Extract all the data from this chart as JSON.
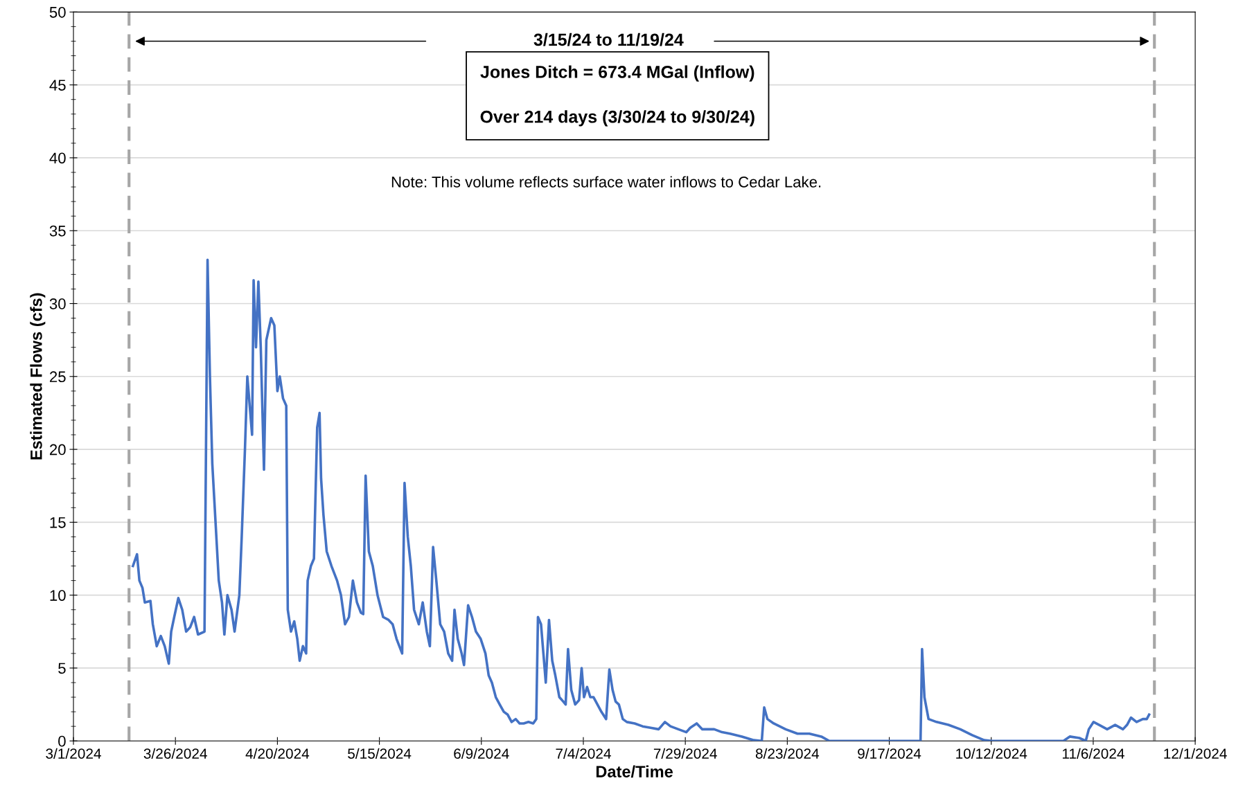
{
  "chart_data": {
    "type": "line",
    "xlabel": "Date/Time",
    "ylabel": "Estimated Flows (cfs)",
    "annotations": [
      "3/15/24 to 11/19/24",
      "Jones Ditch = 673.4 MGal (Inflow)\n\nOver 214 days (3/30/24 to 9/30/24)",
      "Note: This volume reflects surface water inflows to Cedar Lake."
    ],
    "series": [
      {
        "color": "#4472c4",
        "x": [
          "2024-03-15T14:00",
          "2024-03-16T14:00",
          "2024-03-17T04:00",
          "2024-03-17T22:00",
          "2024-03-18T12:00",
          "2024-03-19T21:00",
          "2024-03-20T11:00",
          "2024-03-21T10:00",
          "2024-03-22T10:00",
          "2024-03-23T09:00",
          "2024-03-24T09:00",
          "2024-03-24T23:00",
          "2024-03-25T17:00",
          "2024-03-26T17:00",
          "2024-03-27T16:00",
          "2024-03-28T15:00",
          "2024-03-29T15:00",
          "2024-03-30T14:00",
          "2024-03-31T13:00",
          "2024-04-02T03:00",
          "2024-04-02T21:00",
          "2024-04-03T11:00",
          "2024-04-04T01:00",
          "2024-04-04T20:00",
          "2024-04-05T15:00",
          "2024-04-06T10:00",
          "2024-04-07T00:00",
          "2024-04-07T18:00",
          "2024-04-08T18:00",
          "2024-04-09T12:00",
          "2024-04-10T16:00",
          "2024-04-11T06:00",
          "2024-04-12T01:00",
          "2024-04-12T15:00",
          "2024-04-13T05:00",
          "2024-04-13T19:00",
          "2024-04-14T04:00",
          "2024-04-14T18:00",
          "2024-04-15T08:00",
          "2024-04-15T22:00",
          "2024-04-16T17:00",
          "2024-04-17T07:00",
          "2024-04-18T11:00",
          "2024-04-19T06:00",
          "2024-04-20T00:00",
          "2024-04-20T14:00",
          "2024-04-21T09:00",
          "2024-04-22T04:00",
          "2024-04-22T13:00",
          "2024-04-23T08:00",
          "2024-04-24T03:00",
          "2024-04-24T21:00",
          "2024-04-25T11:00",
          "2024-04-26T06:00",
          "2024-04-27T01:00",
          "2024-04-27T10:00",
          "2024-04-28T05:00",
          "2024-04-28T23:00",
          "2024-04-29T18:00",
          "2024-04-30T08:00",
          "2024-04-30T17:00",
          "2024-05-01T07:00",
          "2024-05-02T02:00",
          "2024-05-03T06:00",
          "2024-05-04T15:00",
          "2024-05-05T14:00",
          "2024-05-06T14:00",
          "2024-05-07T13:00",
          "2024-05-08T12:00",
          "2024-05-09T12:00",
          "2024-05-10T11:00",
          "2024-05-11T01:00",
          "2024-05-11T15:00",
          "2024-05-12T10:00",
          "2024-05-13T09:00",
          "2024-05-14T13:00",
          "2024-05-15T22:00",
          "2024-05-17T06:00",
          "2024-05-18T06:00",
          "2024-05-19T05:00",
          "2024-05-20T14:00",
          "2024-05-21T04:00",
          "2024-05-21T23:00",
          "2024-05-22T17:00",
          "2024-05-23T12:00",
          "2024-05-24T16:00",
          "2024-05-25T15:00",
          "2024-05-26T15:00",
          "2024-05-27T09:00",
          "2024-05-28T04:00",
          "2024-05-28T23:00",
          "2024-05-29T22:00",
          "2024-05-30T21:00",
          "2024-05-31T21:00",
          "2024-06-01T20:00",
          "2024-06-02T10:00",
          "2024-06-03T05:00",
          "2024-06-04T04:00",
          "2024-06-04T18:00",
          "2024-06-05T18:00",
          "2024-06-06T17:00",
          "2024-06-07T16:00",
          "2024-06-08T20:00",
          "2024-06-10T00:00",
          "2024-06-10T19:00",
          "2024-06-11T14:00",
          "2024-06-12T13:00",
          "2024-06-13T12:00",
          "2024-06-14T12:00",
          "2024-06-15T11:00",
          "2024-06-16T10:00",
          "2024-06-17T10:00",
          "2024-06-18T09:00",
          "2024-06-19T09:00",
          "2024-06-20T13:00",
          "2024-06-21T17:00",
          "2024-06-22T11:00",
          "2024-06-22T21:00",
          "2024-06-23T15:00",
          "2024-06-24T05:00",
          "2024-06-24T19:00",
          "2024-06-25T14:00",
          "2024-06-26T09:00",
          "2024-06-27T03:00",
          "2024-06-28T03:00",
          "2024-06-29T02:00",
          "2024-06-29T16:00",
          "2024-06-30T06:00",
          "2024-07-01T01:00",
          "2024-07-02T00:00",
          "2024-07-02T23:00",
          "2024-07-03T14:00",
          "2024-07-04T04:00",
          "2024-07-04T22:00",
          "2024-07-05T17:00",
          "2024-07-06T12:00",
          "2024-07-07T11:00",
          "2024-07-08T10:00",
          "2024-07-09T14:00",
          "2024-07-10T09:00",
          "2024-07-11T04:00",
          "2024-07-11T22:00",
          "2024-07-12T17:00",
          "2024-07-13T16:00",
          "2024-07-14T16:00",
          "2024-07-16T14:00",
          "2024-07-18T13:00",
          "2024-07-20T12:00",
          "2024-07-22T11:00",
          "2024-07-24T00:00",
          "2024-07-25T09:00",
          "2024-07-27T07:00",
          "2024-07-29T06:00",
          "2024-07-30T05:00",
          "2024-07-31T19:00",
          "2024-08-02T04:00",
          "2024-08-05T02:00",
          "2024-08-07T00:00",
          "2024-08-08T23:00",
          "2024-08-11T21:00",
          "2024-08-14T19:00",
          "2024-08-16T18:00",
          "2024-08-17T08:00",
          "2024-08-18T03:00",
          "2024-08-19T16:00",
          "2024-08-22T14:00",
          "2024-08-25T12:00",
          "2024-08-28T10:00",
          "2024-08-31T08:00",
          "2024-09-02T07:00",
          "2024-09-13T00:00",
          "2024-09-24T16:00",
          "2024-09-25T01:00",
          "2024-09-25T15:00",
          "2024-09-26T15:00",
          "2024-09-28T14:00",
          "2024-10-01T12:00",
          "2024-10-04T10:00",
          "2024-10-07T08:00",
          "2024-10-10T06:00",
          "2024-10-12T04:00",
          "2024-10-29T17:00",
          "2024-10-31T06:00",
          "2024-11-02T14:00",
          "2024-11-04T04:00",
          "2024-11-04T22:00",
          "2024-11-06T02:00",
          "2024-11-07T11:00",
          "2024-11-09T10:00",
          "2024-11-11T09:00",
          "2024-11-13T07:00",
          "2024-11-14T07:00",
          "2024-11-15T06:00",
          "2024-11-16T15:00",
          "2024-11-18T04:00",
          "2024-11-19T03:00",
          "2024-11-19T17:00"
        ],
        "values": [
          12,
          12.8,
          11,
          10.5,
          9.5,
          9.6,
          8,
          6.5,
          7.2,
          6.5,
          5.3,
          7.5,
          8.5,
          9.8,
          9,
          7.5,
          7.8,
          8.5,
          7.3,
          7.5,
          33,
          25,
          19,
          15,
          11,
          9.5,
          7.3,
          10,
          9,
          7.5,
          10,
          14,
          20,
          25,
          23,
          21,
          31.6,
          27,
          31.5,
          27,
          18.6,
          27.5,
          29,
          28.5,
          24,
          25,
          23.5,
          23,
          9,
          7.5,
          8.2,
          7,
          5.5,
          6.5,
          6,
          11,
          12,
          12.5,
          21.5,
          22.5,
          18,
          15.5,
          13,
          12,
          11,
          10,
          8,
          8.5,
          11,
          9.5,
          8.8,
          8.7,
          18.2,
          13,
          12,
          10,
          8.5,
          8.3,
          8,
          7,
          6,
          17.7,
          14,
          12,
          9,
          8,
          9.5,
          7.5,
          6.5,
          13.3,
          11,
          8,
          7.5,
          6,
          5.5,
          9,
          7,
          6,
          5.2,
          9.3,
          8.5,
          7.5,
          7,
          6,
          4.5,
          4,
          3,
          2.5,
          2,
          1.8,
          1.3,
          1.5,
          1.2,
          1.2,
          1.3,
          1.2,
          1.5,
          8.5,
          8,
          6,
          4,
          8.3,
          5.5,
          4.5,
          3,
          2.7,
          2.5,
          6.3,
          3.5,
          2.5,
          2.8,
          5,
          3,
          3.7,
          3,
          3,
          2.5,
          2,
          1.5,
          4.9,
          3.5,
          2.7,
          2.5,
          1.5,
          1.3,
          1.2,
          1,
          0.9,
          0.8,
          1.3,
          1,
          0.8,
          0.6,
          0.9,
          1.2,
          0.8,
          0.8,
          0.6,
          0.5,
          0.3,
          0.05,
          0,
          2.3,
          1.5,
          1.2,
          0.8,
          0.5,
          0.5,
          0.3,
          0,
          0,
          0,
          6.3,
          3,
          1.5,
          1.3,
          1.1,
          0.8,
          0.4,
          0.05,
          0,
          0,
          0.3,
          0.2,
          0,
          0.8,
          1.3,
          1.1,
          0.8,
          1.1,
          0.8,
          1.1,
          1.6,
          1.3,
          1.5,
          1.5,
          1.8
        ]
      }
    ],
    "xlim": [
      "2024-03-01",
      "2024-12-01"
    ],
    "xticks": [
      {
        "value": "2024-03-01",
        "label": "3/1/2024"
      },
      {
        "value": "2024-03-26",
        "label": "3/26/2024"
      },
      {
        "value": "2024-04-20",
        "label": "4/20/2024"
      },
      {
        "value": "2024-05-15",
        "label": "5/15/2024"
      },
      {
        "value": "2024-06-09",
        "label": "6/9/2024"
      },
      {
        "value": "2024-07-04",
        "label": "7/4/2024"
      },
      {
        "value": "2024-07-29",
        "label": "7/29/2024"
      },
      {
        "value": "2024-08-23",
        "label": "8/23/2024"
      },
      {
        "value": "2024-09-17",
        "label": "9/17/2024"
      },
      {
        "value": "2024-10-12",
        "label": "10/12/2024"
      },
      {
        "value": "2024-11-06",
        "label": "11/6/2024"
      },
      {
        "value": "2024-12-01",
        "label": "12/1/2024"
      }
    ],
    "ylim": [
      0,
      50
    ],
    "yticks": [
      0,
      5,
      10,
      15,
      20,
      25,
      30,
      35,
      40,
      45,
      50
    ],
    "ref_lines": [
      {
        "axis": "x",
        "value": "2024-03-14T15:00",
        "color": "#a6a6a6",
        "line_style": "dashed"
      },
      {
        "axis": "x",
        "value": "2024-11-21T00:00",
        "color": "#a6a6a6",
        "line_style": "dashed"
      }
    ],
    "grid": "y",
    "legend": false,
    "marker": "none",
    "line_style": "solid"
  }
}
